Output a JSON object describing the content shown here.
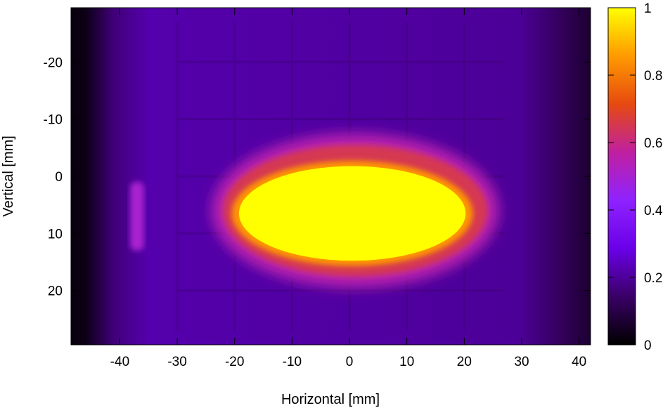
{
  "chart_data": {
    "type": "heatmap",
    "title": "",
    "xlabel": "Horizontal [mm]",
    "ylabel": "Vertical [mm]",
    "xlim": [
      -48.5,
      42
    ],
    "ylim": [
      -29.5,
      29.5
    ],
    "y_inverted": true,
    "xticks": [
      -40,
      -30,
      -20,
      -10,
      0,
      10,
      20,
      30,
      40
    ],
    "yticks": [
      -20,
      -10,
      0,
      10,
      20
    ],
    "colorbar": {
      "range": [
        0,
        1
      ],
      "ticks": [
        0,
        0.2,
        0.4,
        0.6,
        0.8,
        1
      ],
      "tick_labels": [
        "0",
        "0.2",
        "0.4",
        "0.6",
        "0.8",
        "1"
      ],
      "colormap": [
        "#000000",
        "#3a0066",
        "#6a00e8",
        "#8f22ff",
        "#c020a0",
        "#e64a10",
        "#ff9a00",
        "#ffff00"
      ]
    },
    "background_level": 0.22,
    "hot_region": {
      "x_center": 0.5,
      "y_center": 6.5,
      "x_halfwidth": 21,
      "y_halfwidth": 9.2,
      "level": 1.0
    },
    "halo_region": {
      "x_center": 1,
      "y_center": 6,
      "x_halfwidth": 25,
      "y_halfwidth": 13.5,
      "level": 0.55
    },
    "left_stripe": {
      "x": -37,
      "y_range": [
        1,
        13
      ],
      "level": 0.5
    },
    "dark_edges": {
      "left_x": -47,
      "right_x": 41.5,
      "level": 0.02
    }
  }
}
